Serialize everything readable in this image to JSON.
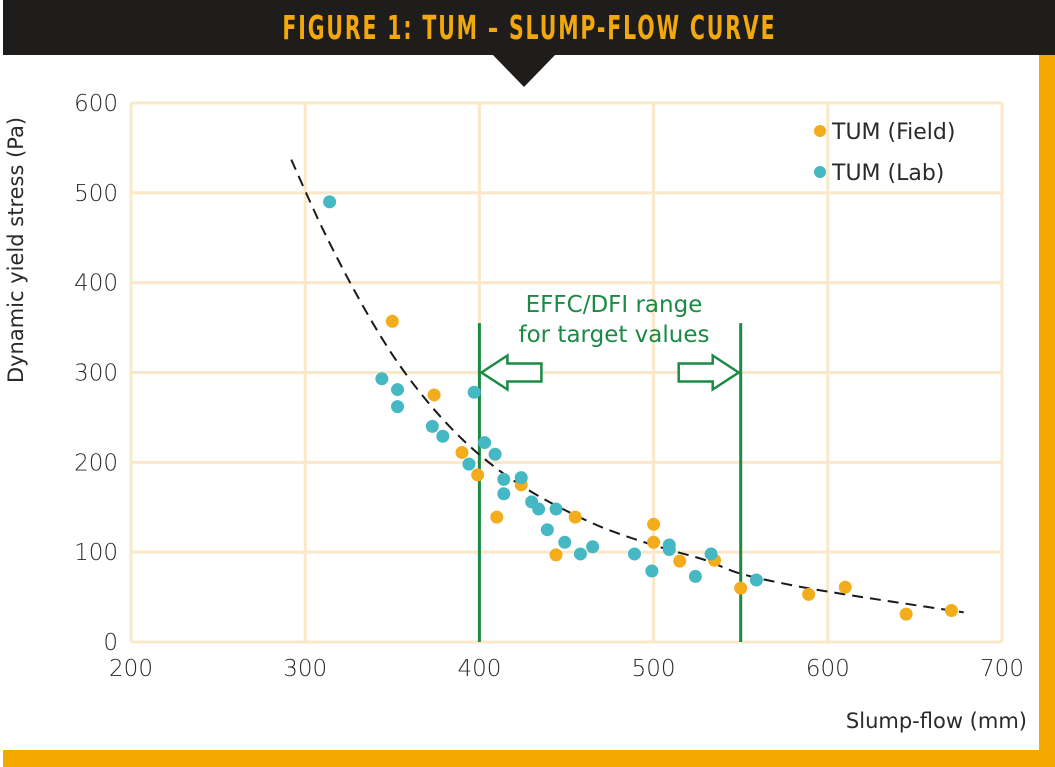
{
  "title": "FIGURE 1: TUM – SLUMP-FLOW CURVE",
  "colors": {
    "title_bar": "#1e1d1b",
    "title_text": "#f2a80c",
    "frame": "#f5a800",
    "grid": "#fbe8c8",
    "field": "#f2ac1c",
    "lab": "#45b8c4",
    "annotation": "#1a8a45",
    "curve": "#1a1a1a"
  },
  "chart_data": {
    "type": "scatter",
    "title": "FIGURE 1: TUM – SLUMP-FLOW CURVE",
    "xlabel": "Slump-flow (mm)",
    "ylabel": "Dynamic yield stress (Pa)",
    "xlim": [
      200,
      700
    ],
    "ylim": [
      0,
      600
    ],
    "xticks": [
      200,
      300,
      400,
      500,
      600,
      700
    ],
    "yticks": [
      0,
      100,
      200,
      300,
      400,
      500,
      600
    ],
    "xtick_labels": [
      "200",
      "300",
      "400",
      "500",
      "600",
      "700"
    ],
    "ytick_labels": [
      "0",
      "100",
      "200",
      "300",
      "400",
      "500",
      "600"
    ],
    "grid": true,
    "legend_position": "top-right",
    "series": [
      {
        "name": "TUM (Field)",
        "color": "#f2ac1c",
        "points": [
          [
            350,
            357
          ],
          [
            374,
            275
          ],
          [
            390,
            211
          ],
          [
            399,
            186
          ],
          [
            410,
            139
          ],
          [
            424,
            175
          ],
          [
            444,
            97
          ],
          [
            455,
            139
          ],
          [
            500,
            131
          ],
          [
            500,
            111
          ],
          [
            515,
            90
          ],
          [
            535,
            91
          ],
          [
            550,
            60
          ],
          [
            589,
            53
          ],
          [
            610,
            61
          ],
          [
            645,
            31
          ],
          [
            671,
            35
          ]
        ]
      },
      {
        "name": "TUM (Lab)",
        "color": "#45b8c4",
        "points": [
          [
            314,
            490
          ],
          [
            344,
            293
          ],
          [
            353,
            281
          ],
          [
            353,
            262
          ],
          [
            373,
            240
          ],
          [
            379,
            229
          ],
          [
            394,
            198
          ],
          [
            397,
            278
          ],
          [
            403,
            222
          ],
          [
            409,
            209
          ],
          [
            414,
            181
          ],
          [
            414,
            165
          ],
          [
            424,
            183
          ],
          [
            430,
            156
          ],
          [
            434,
            148
          ],
          [
            439,
            125
          ],
          [
            444,
            148
          ],
          [
            449,
            111
          ],
          [
            458,
            98
          ],
          [
            465,
            106
          ],
          [
            489,
            98
          ],
          [
            499,
            79
          ],
          [
            509,
            108
          ],
          [
            509,
            103
          ],
          [
            524,
            73
          ],
          [
            533,
            98
          ],
          [
            559,
            69
          ]
        ]
      }
    ],
    "trend_curve": {
      "style": "dashed",
      "points": [
        [
          292,
          537
        ],
        [
          310,
          460
        ],
        [
          330,
          385
        ],
        [
          350,
          320
        ],
        [
          370,
          268
        ],
        [
          390,
          226
        ],
        [
          410,
          193
        ],
        [
          430,
          167
        ],
        [
          450,
          146
        ],
        [
          470,
          128
        ],
        [
          490,
          114
        ],
        [
          510,
          102
        ],
        [
          530,
          91
        ],
        [
          550,
          76
        ],
        [
          580,
          63
        ],
        [
          610,
          53
        ],
        [
          640,
          44
        ],
        [
          678,
          33
        ]
      ]
    },
    "vertical_lines": [
      400,
      550
    ],
    "range_top": 355,
    "annotation": {
      "lines": [
        "EFFC/DFI range",
        "for target values"
      ],
      "arrow_y": 300
    }
  }
}
